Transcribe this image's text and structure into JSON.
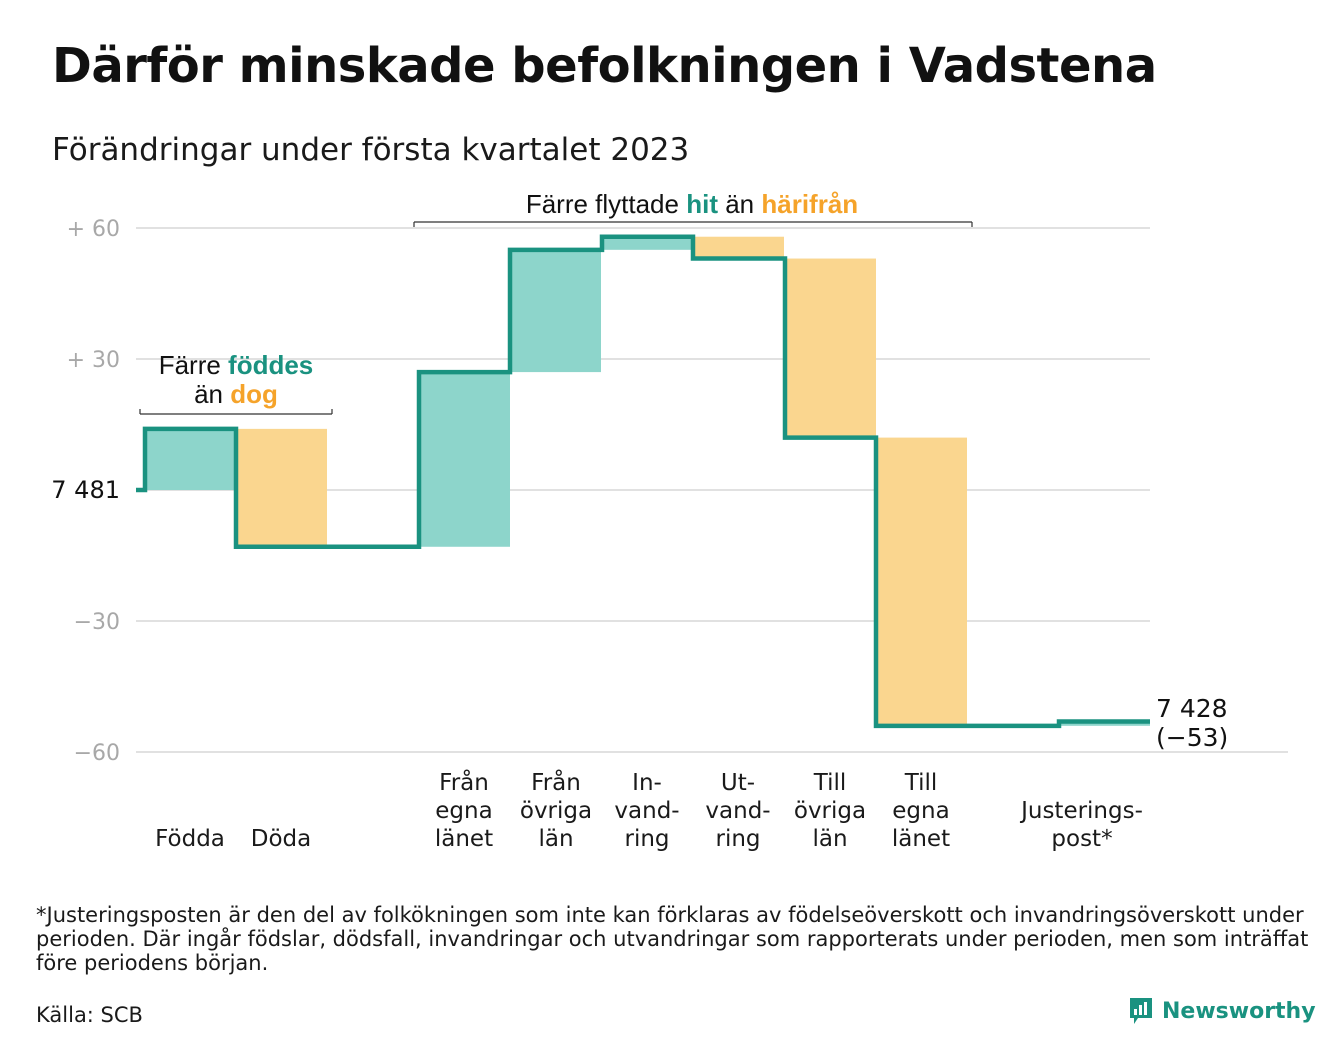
{
  "title": "Därför minskade befolkningen i Vadstena",
  "subtitle": "Förändringar under första kvartalet 2023",
  "footnote": "*Justeringsposten är den del av folkökningen som inte kan förklaras av födelseöverskott och invandringsöverskott under perioden. Där ingår födslar, dödsfall, invandringar och utvandringar som rapporterats under perioden, men som inträffat före periodens början.",
  "source": "Källa: SCB",
  "brand": "Newsworthy",
  "colors": {
    "teal": "#1a9280",
    "teal_fill": "#8dd5cb",
    "orange": "#f5a32a",
    "orange_fill": "#fad68f",
    "grid": "#e1e1e1",
    "tick": "#a8a8a8"
  },
  "annotations": {
    "born": {
      "line1": "Färre",
      "hl1": "föddes",
      "line2": "än",
      "hl2": "dog"
    },
    "moved": {
      "pre": "Färre flyttade",
      "hl1": "hit",
      "mid": "än",
      "hl2": "härifrån"
    }
  },
  "chart_data": {
    "type": "waterfall",
    "title": "Därför minskade befolkningen i Vadstena",
    "subtitle": "Förändringar under första kvartalet 2023",
    "ylim": [
      -60,
      60
    ],
    "yticks": [
      {
        "value": 60,
        "label": "+ 60"
      },
      {
        "value": 30,
        "label": "+ 30"
      },
      {
        "value": -30,
        "label": "−30"
      },
      {
        "value": -60,
        "label": "−60"
      }
    ],
    "start": {
      "value": 0,
      "label": "7 481"
    },
    "end": {
      "value": -53,
      "label": "7 428",
      "change": "(−53)"
    },
    "categories": [
      {
        "label": [
          "Födda"
        ],
        "type": "in",
        "from": 0,
        "to": 14
      },
      {
        "label": [
          "Döda"
        ],
        "type": "out",
        "from": 14,
        "to": -13
      },
      {
        "label": [
          "Från",
          "egna",
          "länet"
        ],
        "type": "in",
        "from": -13,
        "to": 27
      },
      {
        "label": [
          "Från",
          "övriga",
          "län"
        ],
        "type": "in",
        "from": 27,
        "to": 55
      },
      {
        "label": [
          "In-",
          "vand-",
          "ring"
        ],
        "type": "in",
        "from": 55,
        "to": 58
      },
      {
        "label": [
          "Ut-",
          "vand-",
          "ring"
        ],
        "type": "out",
        "from": 58,
        "to": 53
      },
      {
        "label": [
          "Till",
          "övriga",
          "län"
        ],
        "type": "out",
        "from": 53,
        "to": 12
      },
      {
        "label": [
          "Till",
          "egna",
          "länet"
        ],
        "type": "out",
        "from": 12,
        "to": -54
      },
      {
        "label": [
          "Justerings-",
          "post*"
        ],
        "type": "in",
        "from": -54,
        "to": -53
      }
    ],
    "grid": true,
    "legend": "none"
  }
}
